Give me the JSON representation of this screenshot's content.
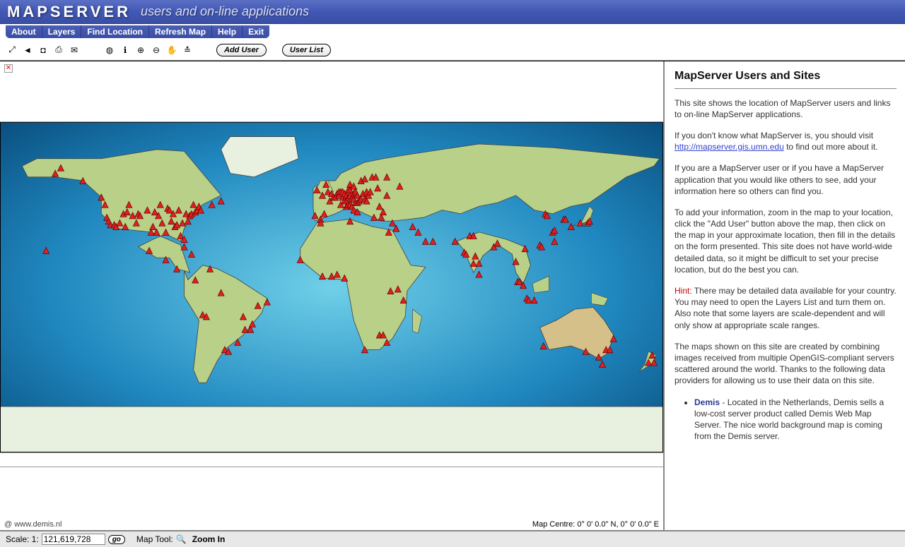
{
  "banner": {
    "logo_text": "MAPSERVER",
    "subtitle": "users and on-line applications"
  },
  "menu": {
    "items": [
      "About",
      "Layers",
      "Find Location",
      "Refresh Map",
      "Help",
      "Exit"
    ]
  },
  "toolbar": {
    "add_user_label": "Add User",
    "user_list_label": "User List",
    "icons_group1": [
      {
        "name": "fullscreen-icon",
        "glyph": "⤢"
      },
      {
        "name": "back-icon",
        "glyph": "◄"
      },
      {
        "name": "stop-icon",
        "glyph": "◘"
      },
      {
        "name": "print-icon",
        "glyph": "⎙"
      },
      {
        "name": "mail-icon",
        "glyph": "✉"
      }
    ],
    "icons_group2": [
      {
        "name": "world-icon",
        "glyph": "◍"
      },
      {
        "name": "info-icon",
        "glyph": "ℹ"
      },
      {
        "name": "zoom-in-icon",
        "glyph": "⊕"
      },
      {
        "name": "zoom-out-icon",
        "glyph": "⊖"
      },
      {
        "name": "pan-icon",
        "glyph": "✋"
      },
      {
        "name": "ruler-icon",
        "glyph": "≛"
      }
    ]
  },
  "map": {
    "credit": "@ www.demis.nl",
    "centre_label": "Map Centre: 0° 0' 0.0\" N, 0° 0' 0.0\" E",
    "extent": {
      "xmin": -180,
      "xmax": 180,
      "ymin": -90,
      "ymax": 90
    },
    "colors": {
      "ocean_gradient": [
        "#0a5080",
        "#2088c0",
        "#70d0e8"
      ],
      "land": "#b8d088",
      "land_highland": "#d4c088",
      "ice": "#e8f0e0",
      "rivers": "#3050c0",
      "borders": "#404040",
      "marker_fill": "#e02020",
      "marker_stroke": "#600000"
    },
    "user_markers": [
      [
        -155,
        20
      ],
      [
        -150,
        62
      ],
      [
        -147,
        65
      ],
      [
        -135,
        58
      ],
      [
        -125,
        49
      ],
      [
        -123,
        45
      ],
      [
        -122,
        38
      ],
      [
        -121,
        36
      ],
      [
        -120,
        34
      ],
      [
        -118,
        34
      ],
      [
        -117,
        33
      ],
      [
        -115,
        35
      ],
      [
        -113,
        40
      ],
      [
        -112,
        33
      ],
      [
        -111,
        41
      ],
      [
        -110,
        45
      ],
      [
        -108,
        39
      ],
      [
        -106,
        35
      ],
      [
        -105,
        40
      ],
      [
        -104,
        39
      ],
      [
        -100,
        42
      ],
      [
        -98,
        30
      ],
      [
        -97,
        33
      ],
      [
        -96,
        41
      ],
      [
        -95,
        30
      ],
      [
        -94,
        39
      ],
      [
        -93,
        45
      ],
      [
        -92,
        35
      ],
      [
        -90,
        30
      ],
      [
        -89,
        43
      ],
      [
        -88,
        42
      ],
      [
        -87,
        36
      ],
      [
        -86,
        40
      ],
      [
        -85,
        33
      ],
      [
        -84,
        34
      ],
      [
        -83,
        42
      ],
      [
        -82,
        28
      ],
      [
        -81,
        35
      ],
      [
        -80,
        26
      ],
      [
        -79,
        40
      ],
      [
        -78,
        36
      ],
      [
        -77,
        39
      ],
      [
        -76,
        40
      ],
      [
        -75,
        45
      ],
      [
        -74,
        41
      ],
      [
        -73,
        42
      ],
      [
        -72,
        44
      ],
      [
        -71,
        42
      ],
      [
        -65,
        45
      ],
      [
        -60,
        47
      ],
      [
        -99,
        20
      ],
      [
        -90,
        15
      ],
      [
        -84,
        10
      ],
      [
        -80,
        22
      ],
      [
        -76,
        18
      ],
      [
        -74,
        4
      ],
      [
        -70,
        -15
      ],
      [
        -68,
        -16
      ],
      [
        -66,
        10
      ],
      [
        -60,
        -3
      ],
      [
        -58,
        -34
      ],
      [
        -56,
        -35
      ],
      [
        -51,
        -30
      ],
      [
        -48,
        -16
      ],
      [
        -47,
        -23
      ],
      [
        -44,
        -23
      ],
      [
        -43,
        -20
      ],
      [
        -40,
        -10
      ],
      [
        -35,
        -8
      ],
      [
        -9,
        39
      ],
      [
        -8,
        53
      ],
      [
        -6,
        37
      ],
      [
        -5,
        50
      ],
      [
        -4,
        40
      ],
      [
        -3,
        56
      ],
      [
        -2,
        52
      ],
      [
        -1,
        47
      ],
      [
        0,
        51
      ],
      [
        1,
        49
      ],
      [
        2,
        49
      ],
      [
        3,
        51
      ],
      [
        4,
        50
      ],
      [
        4,
        52
      ],
      [
        5,
        52
      ],
      [
        5,
        45
      ],
      [
        6,
        49
      ],
      [
        6,
        52
      ],
      [
        7,
        51
      ],
      [
        7,
        47
      ],
      [
        8,
        50
      ],
      [
        8,
        47
      ],
      [
        8,
        44
      ],
      [
        9,
        53
      ],
      [
        9,
        49
      ],
      [
        9,
        45
      ],
      [
        10,
        56
      ],
      [
        10,
        53
      ],
      [
        10,
        50
      ],
      [
        10,
        45
      ],
      [
        11,
        48
      ],
      [
        11,
        44
      ],
      [
        12,
        55
      ],
      [
        12,
        51
      ],
      [
        12,
        48
      ],
      [
        12,
        42
      ],
      [
        13,
        52
      ],
      [
        13,
        46
      ],
      [
        14,
        50
      ],
      [
        14,
        46
      ],
      [
        14,
        41
      ],
      [
        15,
        47
      ],
      [
        16,
        48
      ],
      [
        16,
        58
      ],
      [
        17,
        51
      ],
      [
        18,
        59
      ],
      [
        18,
        48
      ],
      [
        19,
        47
      ],
      [
        19,
        52
      ],
      [
        20,
        50
      ],
      [
        21,
        52
      ],
      [
        22,
        60
      ],
      [
        23,
        38
      ],
      [
        24,
        60
      ],
      [
        25,
        54
      ],
      [
        26,
        44
      ],
      [
        27,
        38
      ],
      [
        28,
        41
      ],
      [
        30,
        50
      ],
      [
        30,
        60
      ],
      [
        33,
        35
      ],
      [
        35,
        32
      ],
      [
        37,
        55
      ],
      [
        -17,
        15
      ],
      [
        -6,
        35
      ],
      [
        -5,
        6
      ],
      [
        0,
        6
      ],
      [
        3,
        7
      ],
      [
        7,
        5
      ],
      [
        10,
        36
      ],
      [
        18,
        -34
      ],
      [
        26,
        -26
      ],
      [
        28,
        -26
      ],
      [
        30,
        -30
      ],
      [
        31,
        30
      ],
      [
        32,
        -2
      ],
      [
        36,
        -1
      ],
      [
        39,
        -7
      ],
      [
        35,
        32
      ],
      [
        44,
        33
      ],
      [
        47,
        30
      ],
      [
        51,
        25
      ],
      [
        55,
        25
      ],
      [
        67,
        25
      ],
      [
        72,
        19
      ],
      [
        73,
        18
      ],
      [
        75,
        28
      ],
      [
        77,
        13
      ],
      [
        77,
        28
      ],
      [
        78,
        17
      ],
      [
        80,
        13
      ],
      [
        80,
        7
      ],
      [
        88,
        22
      ],
      [
        90,
        24
      ],
      [
        100,
        14
      ],
      [
        101,
        3
      ],
      [
        102,
        3
      ],
      [
        104,
        1
      ],
      [
        105,
        21
      ],
      [
        106,
        -6
      ],
      [
        107,
        -7
      ],
      [
        110,
        -7
      ],
      [
        113,
        23
      ],
      [
        114,
        22
      ],
      [
        116,
        40
      ],
      [
        117,
        39
      ],
      [
        120,
        30
      ],
      [
        121,
        25
      ],
      [
        121,
        31
      ],
      [
        126,
        37
      ],
      [
        127,
        37
      ],
      [
        130,
        33
      ],
      [
        135,
        35
      ],
      [
        139,
        35
      ],
      [
        140,
        36
      ],
      [
        115,
        -32
      ],
      [
        138,
        -35
      ],
      [
        145,
        -38
      ],
      [
        147,
        -42
      ],
      [
        149,
        -34
      ],
      [
        151,
        -34
      ],
      [
        153,
        -28
      ],
      [
        172,
        -41
      ],
      [
        174,
        -37
      ],
      [
        175,
        -41
      ]
    ]
  },
  "info": {
    "title": "MapServer Users and Sites",
    "p1": "This site shows the location of MapServer users and links to on-line MapServer applications.",
    "p2_a": "If you don't know what MapServer is, you should visit ",
    "p2_link": "http://mapserver.gis.umn.edu",
    "p2_b": " to find out more about it.",
    "p3": "If you are a MapServer user or if you have a MapServer application that you would like others to see, add your information here so others can find you.",
    "p4": "To add your information, zoom in the map to your location, click the \"Add User\" button above the map, then click on the map in your approximate location, then fill in the details on the form presented. This site does not have world-wide detailed data, so it might be difficult to set your precise location, but do the best you can.",
    "hint_label": "Hint:",
    "hint_text": " There may be detailed data available for your country. You may need to open the Layers List and turn them on. Also note that some layers are scale-dependent and will only show at appropriate scale ranges.",
    "p6": "The maps shown on this site are created by combining images received from multiple OpenGIS-compliant servers scattered around the world. Thanks to the following data providers for allowing us to use their data on this site.",
    "provider1_name": "Demis",
    "provider1_text": " - Located in the Netherlands, Demis sells a low-cost server product called Demis Web Map Server. The nice world background map is coming from the Demis server."
  },
  "status": {
    "scale_prefix": "Scale: 1:",
    "scale_value": "121,619,728",
    "go_label": "go",
    "maptool_prefix": "Map Tool:",
    "maptool_glyph": "🔍",
    "maptool_name": "Zoom In"
  }
}
